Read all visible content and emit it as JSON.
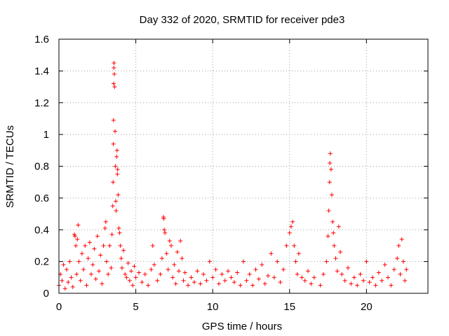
{
  "chart_data": {
    "type": "scatter",
    "title": "Day 332 of 2020, SRMTID for receiver pde3",
    "xlabel": "GPS time / hours",
    "ylabel": "SRMTID / TECUs",
    "xlim": [
      0,
      24
    ],
    "ylim": [
      0,
      1.6
    ],
    "xticks": [
      0,
      5,
      10,
      15,
      20
    ],
    "yticks": [
      0,
      0.2,
      0.4,
      0.6,
      0.8,
      1,
      1.2,
      1.4,
      1.6
    ],
    "xtick_labels": [
      "0",
      "5",
      "10",
      "15",
      "20"
    ],
    "ytick_labels": [
      "0",
      "0.2",
      "0.4",
      "0.6",
      "0.8",
      "1",
      "1.2",
      "1.4",
      "1.6"
    ],
    "grid": true,
    "marker": "+",
    "color": "#ff0000",
    "series": [
      {
        "name": "SRMTID",
        "points": [
          [
            0.0,
            0.05
          ],
          [
            0.1,
            0.12
          ],
          [
            0.2,
            0.08
          ],
          [
            0.3,
            0.18
          ],
          [
            0.4,
            0.03
          ],
          [
            0.5,
            0.15
          ],
          [
            0.6,
            0.07
          ],
          [
            0.7,
            0.2
          ],
          [
            0.8,
            0.1
          ],
          [
            0.9,
            0.04
          ],
          [
            1.0,
            0.37
          ],
          [
            1.05,
            0.36
          ],
          [
            1.1,
            0.3
          ],
          [
            1.15,
            0.12
          ],
          [
            1.2,
            0.34
          ],
          [
            1.25,
            0.43
          ],
          [
            1.3,
            0.2
          ],
          [
            1.4,
            0.08
          ],
          [
            1.5,
            0.25
          ],
          [
            1.6,
            0.15
          ],
          [
            1.7,
            0.3
          ],
          [
            1.8,
            0.05
          ],
          [
            1.9,
            0.22
          ],
          [
            2.0,
            0.32
          ],
          [
            2.1,
            0.12
          ],
          [
            2.2,
            0.18
          ],
          [
            2.3,
            0.28
          ],
          [
            2.4,
            0.09
          ],
          [
            2.5,
            0.36
          ],
          [
            2.6,
            0.14
          ],
          [
            2.7,
            0.24
          ],
          [
            2.8,
            0.06
          ],
          [
            2.9,
            0.3
          ],
          [
            3.0,
            0.41
          ],
          [
            3.05,
            0.45
          ],
          [
            3.1,
            0.2
          ],
          [
            3.2,
            0.12
          ],
          [
            3.3,
            0.3
          ],
          [
            3.4,
            0.16
          ],
          [
            3.45,
            0.37
          ],
          [
            3.5,
            0.55
          ],
          [
            3.52,
            0.7
          ],
          [
            3.54,
            0.94
          ],
          [
            3.55,
            1.09
          ],
          [
            3.56,
            1.32
          ],
          [
            3.57,
            1.42
          ],
          [
            3.58,
            1.45
          ],
          [
            3.6,
            1.38
          ],
          [
            3.62,
            1.3
          ],
          [
            3.65,
            1.02
          ],
          [
            3.67,
            0.8
          ],
          [
            3.7,
            0.58
          ],
          [
            3.72,
            0.52
          ],
          [
            3.75,
            0.86
          ],
          [
            3.78,
            0.9
          ],
          [
            3.8,
            0.75
          ],
          [
            3.82,
            0.78
          ],
          [
            3.85,
            0.62
          ],
          [
            3.9,
            0.41
          ],
          [
            3.95,
            0.38
          ],
          [
            4.0,
            0.3
          ],
          [
            4.05,
            0.22
          ],
          [
            4.1,
            0.16
          ],
          [
            4.2,
            0.27
          ],
          [
            4.3,
            0.12
          ],
          [
            4.4,
            0.1
          ],
          [
            4.5,
            0.19
          ],
          [
            4.6,
            0.08
          ],
          [
            4.7,
            0.14
          ],
          [
            4.8,
            0.05
          ],
          [
            4.9,
            0.17
          ],
          [
            5.0,
            0.1
          ],
          [
            5.2,
            0.13
          ],
          [
            5.4,
            0.07
          ],
          [
            5.6,
            0.12
          ],
          [
            5.8,
            0.05
          ],
          [
            6.0,
            0.15
          ],
          [
            6.1,
            0.3
          ],
          [
            6.2,
            0.18
          ],
          [
            6.4,
            0.08
          ],
          [
            6.6,
            0.12
          ],
          [
            6.7,
            0.22
          ],
          [
            6.8,
            0.48
          ],
          [
            6.82,
            0.47
          ],
          [
            6.85,
            0.4
          ],
          [
            6.9,
            0.38
          ],
          [
            7.0,
            0.25
          ],
          [
            7.1,
            0.15
          ],
          [
            7.2,
            0.33
          ],
          [
            7.3,
            0.3
          ],
          [
            7.4,
            0.1
          ],
          [
            7.5,
            0.18
          ],
          [
            7.6,
            0.06
          ],
          [
            7.7,
            0.26
          ],
          [
            7.8,
            0.14
          ],
          [
            7.9,
            0.33
          ],
          [
            8.0,
            0.22
          ],
          [
            8.1,
            0.08
          ],
          [
            8.2,
            0.13
          ],
          [
            8.4,
            0.05
          ],
          [
            8.6,
            0.1
          ],
          [
            8.8,
            0.07
          ],
          [
            9.0,
            0.14
          ],
          [
            9.2,
            0.06
          ],
          [
            9.4,
            0.12
          ],
          [
            9.6,
            0.08
          ],
          [
            9.8,
            0.2
          ],
          [
            10.0,
            0.1
          ],
          [
            10.2,
            0.15
          ],
          [
            10.4,
            0.06
          ],
          [
            10.6,
            0.12
          ],
          [
            10.8,
            0.08
          ],
          [
            11.0,
            0.14
          ],
          [
            11.2,
            0.1
          ],
          [
            11.4,
            0.07
          ],
          [
            11.6,
            0.13
          ],
          [
            11.8,
            0.05
          ],
          [
            12.0,
            0.2
          ],
          [
            12.2,
            0.08
          ],
          [
            12.4,
            0.12
          ],
          [
            12.6,
            0.05
          ],
          [
            12.8,
            0.15
          ],
          [
            13.0,
            0.09
          ],
          [
            13.2,
            0.18
          ],
          [
            13.4,
            0.06
          ],
          [
            13.6,
            0.11
          ],
          [
            13.8,
            0.25
          ],
          [
            14.0,
            0.1
          ],
          [
            14.2,
            0.2
          ],
          [
            14.4,
            0.07
          ],
          [
            14.6,
            0.15
          ],
          [
            14.8,
            0.3
          ],
          [
            15.0,
            0.38
          ],
          [
            15.1,
            0.42
          ],
          [
            15.2,
            0.45
          ],
          [
            15.3,
            0.3
          ],
          [
            15.4,
            0.2
          ],
          [
            15.5,
            0.12
          ],
          [
            15.6,
            0.25
          ],
          [
            15.8,
            0.1
          ],
          [
            16.0,
            0.08
          ],
          [
            16.2,
            0.14
          ],
          [
            16.4,
            0.06
          ],
          [
            16.6,
            0.1
          ],
          [
            17.0,
            0.05
          ],
          [
            17.2,
            0.12
          ],
          [
            17.4,
            0.2
          ],
          [
            17.5,
            0.36
          ],
          [
            17.55,
            0.52
          ],
          [
            17.6,
            0.7
          ],
          [
            17.62,
            0.82
          ],
          [
            17.65,
            0.88
          ],
          [
            17.7,
            0.78
          ],
          [
            17.75,
            0.62
          ],
          [
            17.8,
            0.45
          ],
          [
            17.85,
            0.38
          ],
          [
            17.9,
            0.3
          ],
          [
            18.0,
            0.22
          ],
          [
            18.1,
            0.14
          ],
          [
            18.2,
            0.42
          ],
          [
            18.3,
            0.26
          ],
          [
            18.4,
            0.12
          ],
          [
            18.6,
            0.08
          ],
          [
            18.8,
            0.16
          ],
          [
            19.0,
            0.06
          ],
          [
            19.2,
            0.1
          ],
          [
            19.4,
            0.05
          ],
          [
            19.6,
            0.12
          ],
          [
            19.8,
            0.08
          ],
          [
            20.0,
            0.2
          ],
          [
            20.2,
            0.07
          ],
          [
            20.4,
            0.1
          ],
          [
            20.6,
            0.05
          ],
          [
            20.8,
            0.13
          ],
          [
            21.0,
            0.08
          ],
          [
            21.2,
            0.18
          ],
          [
            21.4,
            0.1
          ],
          [
            21.6,
            0.05
          ],
          [
            21.8,
            0.15
          ],
          [
            22.0,
            0.22
          ],
          [
            22.1,
            0.3
          ],
          [
            22.2,
            0.12
          ],
          [
            22.3,
            0.34
          ],
          [
            22.4,
            0.2
          ],
          [
            22.5,
            0.08
          ],
          [
            22.6,
            0.15
          ]
        ]
      }
    ]
  }
}
